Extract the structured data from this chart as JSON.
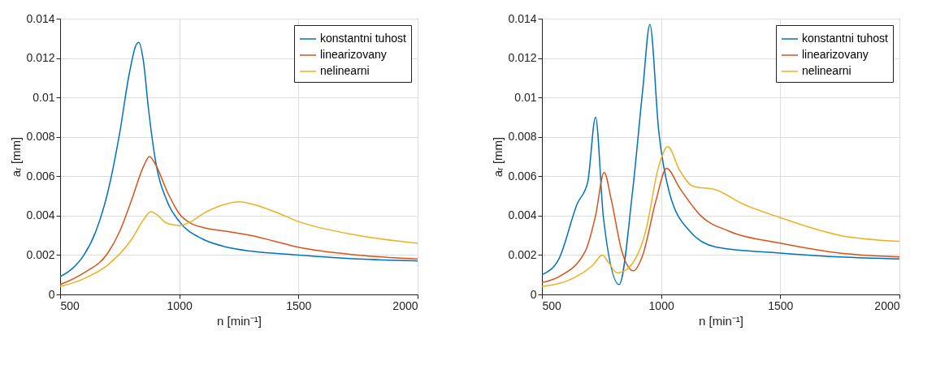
{
  "chart_data": [
    {
      "type": "line",
      "xlabel": "n [min⁻¹]",
      "ylabel": "aᵣ [mm]",
      "xlim": [
        500,
        2000
      ],
      "ylim": [
        0,
        0.014
      ],
      "xticks": [
        500,
        1000,
        1500,
        2000
      ],
      "yticks": [
        0,
        0.002,
        0.004,
        0.006,
        0.008,
        0.01,
        0.012,
        0.014
      ],
      "grid": true,
      "legend": "top right",
      "line_style": "solid",
      "marker": "none",
      "series": [
        {
          "name": "konstantni tuhost",
          "color": "#0072bd",
          "x": [
            500,
            550,
            600,
            650,
            700,
            750,
            790,
            820,
            830,
            850,
            870,
            900,
            950,
            1000,
            1100,
            1200,
            1300,
            1500,
            1750,
            2000
          ],
          "values": [
            0.0009,
            0.0013,
            0.002,
            0.0032,
            0.0052,
            0.0082,
            0.0112,
            0.0127,
            0.0128,
            0.0118,
            0.0095,
            0.0068,
            0.0047,
            0.0037,
            0.0028,
            0.0024,
            0.0022,
            0.002,
            0.0018,
            0.0017
          ]
        },
        {
          "name": "linearizovany",
          "color": "#d95319",
          "x": [
            500,
            600,
            700,
            750,
            800,
            850,
            875,
            900,
            950,
            1000,
            1050,
            1100,
            1200,
            1250,
            1300,
            1400,
            1500,
            1750,
            2000
          ],
          "values": [
            0.0005,
            0.0011,
            0.0021,
            0.0032,
            0.0048,
            0.0065,
            0.007,
            0.0066,
            0.0052,
            0.0041,
            0.0036,
            0.0034,
            0.0032,
            0.0031,
            0.003,
            0.0027,
            0.0024,
            0.002,
            0.0018
          ]
        },
        {
          "name": "nelinearni",
          "color": "#edb120",
          "x": [
            500,
            600,
            700,
            800,
            850,
            880,
            900,
            950,
            1000,
            1050,
            1100,
            1200,
            1250,
            1300,
            1400,
            1500,
            1750,
            2000
          ],
          "values": [
            0.0004,
            0.0008,
            0.0015,
            0.0028,
            0.0038,
            0.0042,
            0.0041,
            0.0036,
            0.0035,
            0.0037,
            0.0041,
            0.0046,
            0.0047,
            0.0046,
            0.0042,
            0.0037,
            0.003,
            0.0026
          ]
        }
      ]
    },
    {
      "type": "line",
      "xlabel": "n [min⁻¹]",
      "ylabel": "aᵣ [mm]",
      "xlim": [
        500,
        2000
      ],
      "ylim": [
        0,
        0.014
      ],
      "xticks": [
        500,
        1000,
        1500,
        2000
      ],
      "yticks": [
        0,
        0.002,
        0.004,
        0.006,
        0.008,
        0.01,
        0.012,
        0.014
      ],
      "grid": true,
      "legend": "top right",
      "line_style": "solid",
      "marker": "none",
      "series": [
        {
          "name": "konstantni tuhost",
          "color": "#0072bd",
          "x": [
            500,
            571,
            648,
            692,
            725,
            758,
            824,
            880,
            923,
            953,
            990,
            1034,
            1121,
            1232,
            1500,
            1750,
            2000
          ],
          "values": [
            0.001,
            0.0018,
            0.0046,
            0.0057,
            0.009,
            0.0039,
            0.0005,
            0.0052,
            0.0104,
            0.0137,
            0.0083,
            0.0052,
            0.0032,
            0.0024,
            0.0021,
            0.0019,
            0.0018
          ]
        },
        {
          "name": "linearizovany",
          "color": "#d95319",
          "x": [
            500,
            571,
            682,
            725,
            761,
            791,
            835,
            884,
            923,
            979,
            1023,
            1078,
            1166,
            1287,
            1500,
            1750,
            2000
          ],
          "values": [
            0.0006,
            0.0009,
            0.0022,
            0.004,
            0.0062,
            0.0048,
            0.0022,
            0.0012,
            0.002,
            0.0048,
            0.0064,
            0.0054,
            0.004,
            0.0032,
            0.0026,
            0.0021,
            0.0019
          ]
        },
        {
          "name": "nelinearni",
          "color": "#edb120",
          "x": [
            500,
            627,
            715,
            753,
            781,
            814,
            847,
            935,
            990,
            1028,
            1078,
            1133,
            1232,
            1342,
            1500,
            1750,
            2000
          ],
          "values": [
            0.0004,
            0.0008,
            0.0015,
            0.002,
            0.0016,
            0.0011,
            0.0012,
            0.0032,
            0.0065,
            0.0075,
            0.0063,
            0.0055,
            0.0053,
            0.0046,
            0.0039,
            0.003,
            0.0027
          ]
        }
      ]
    }
  ]
}
